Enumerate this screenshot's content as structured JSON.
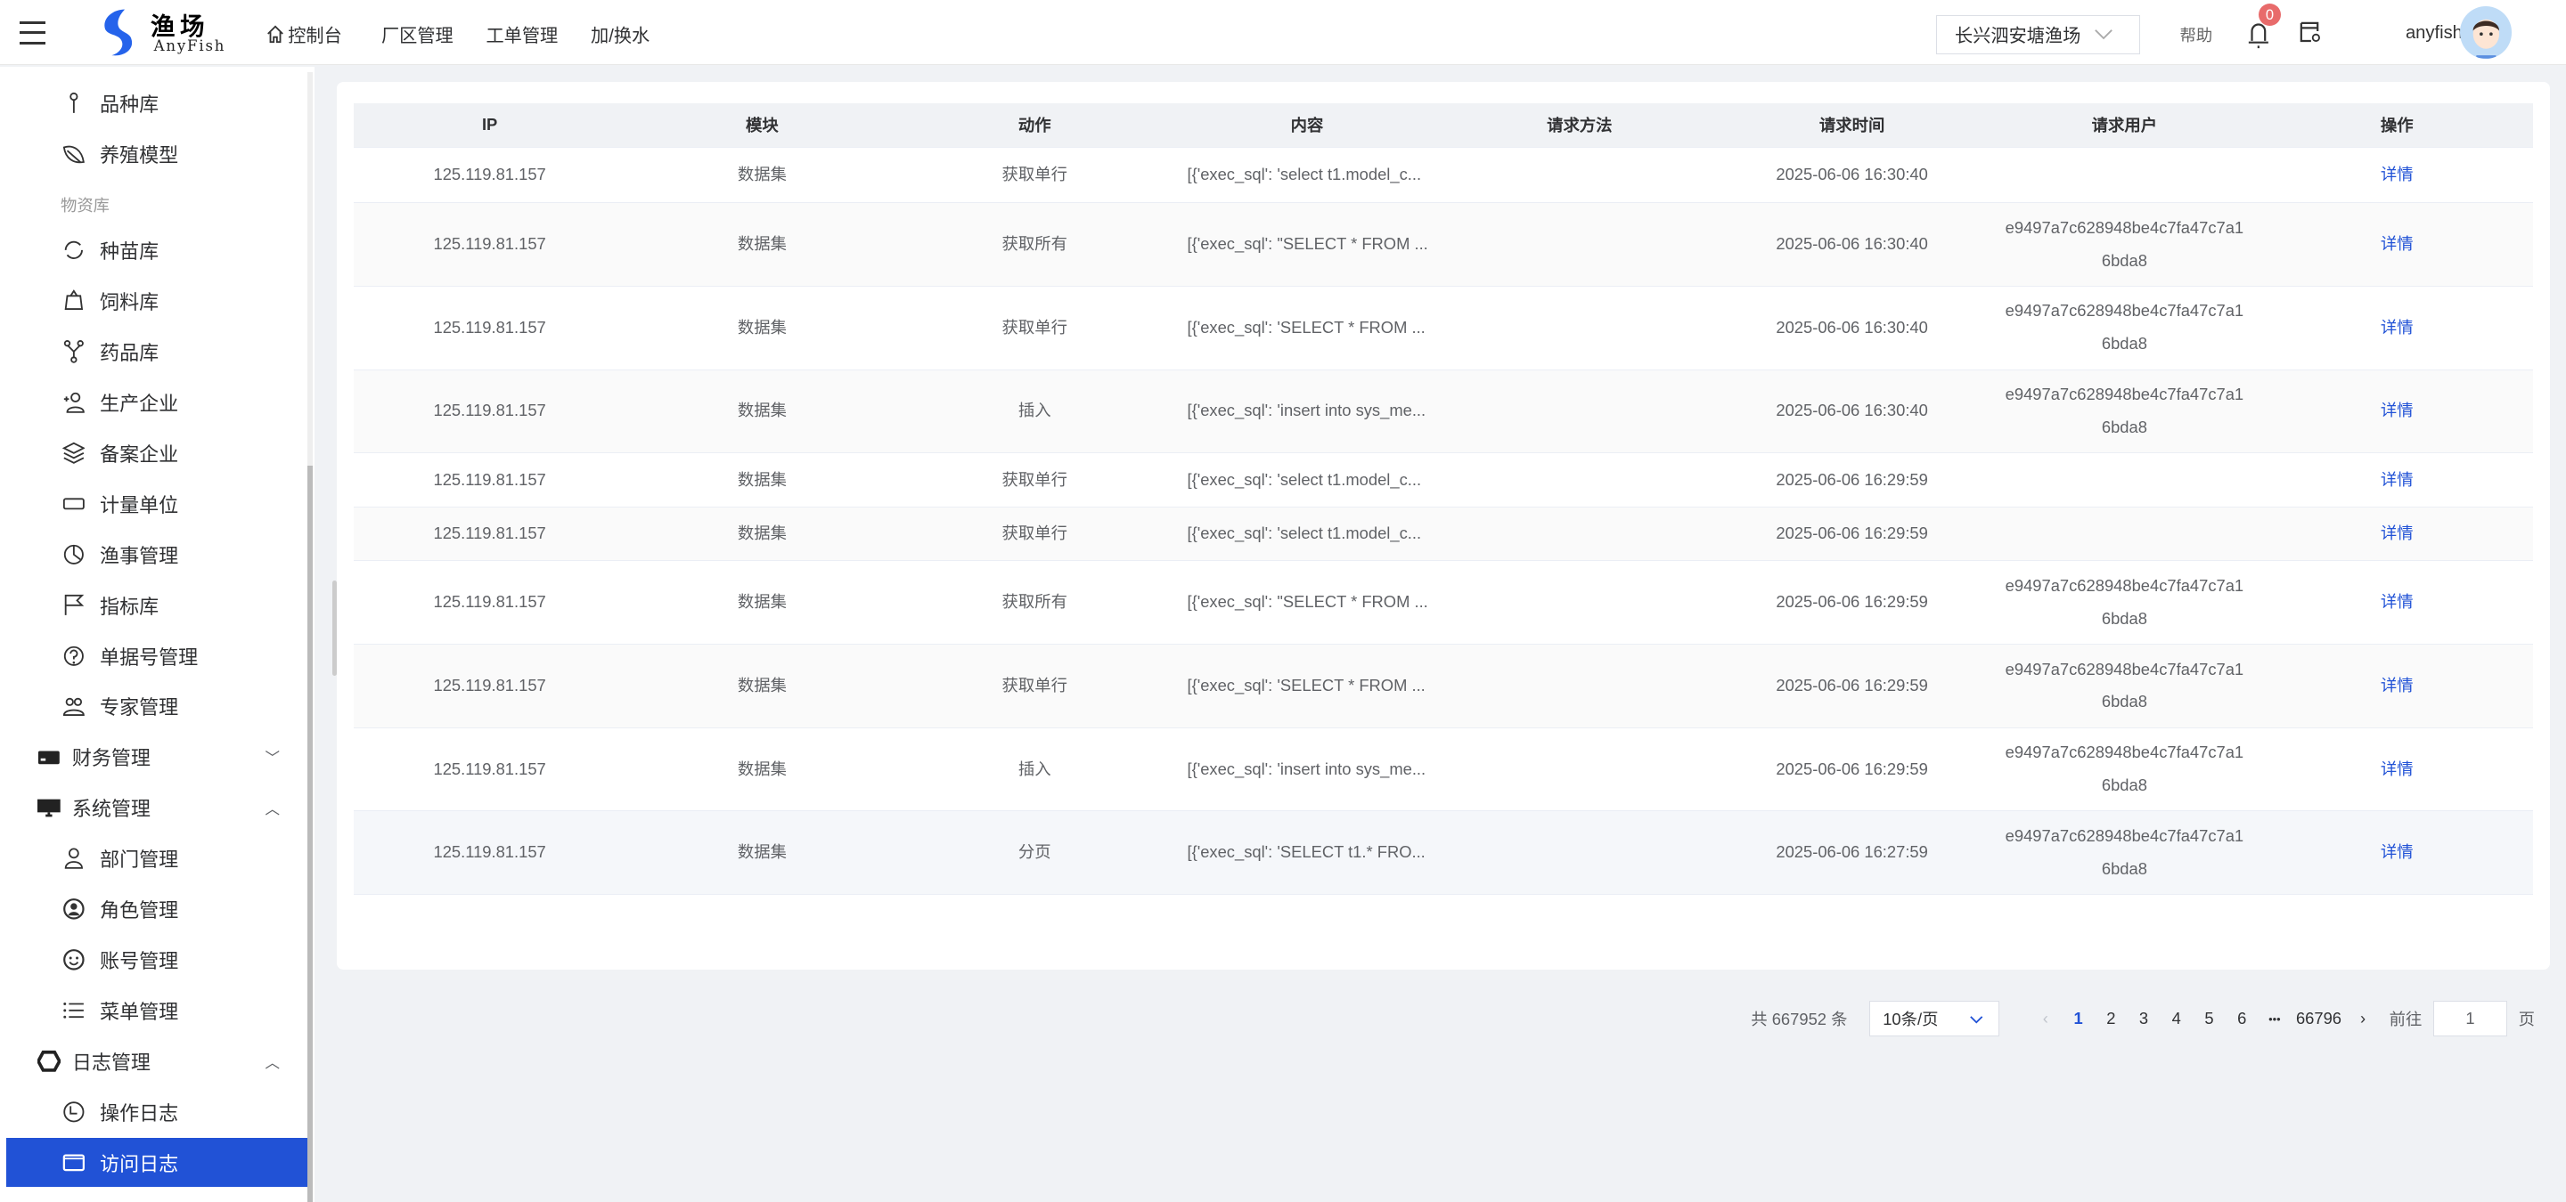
{
  "header": {
    "logo_text": "渔场",
    "logo_sub": "AnyFish",
    "nav": [
      {
        "label": "控制台",
        "icon": "home-icon"
      },
      {
        "label": "厂区管理"
      },
      {
        "label": "工单管理"
      },
      {
        "label": "加/换水"
      }
    ],
    "farm_select": "长兴泗安塘渔场",
    "help": "帮助",
    "notification_count": "0",
    "username": "anyfish"
  },
  "sidebar": {
    "items": [
      {
        "label": "品种库",
        "icon": "pin-icon"
      },
      {
        "label": "养殖模型",
        "icon": "leaf-icon"
      },
      {
        "section": "物资库"
      },
      {
        "label": "种苗库",
        "icon": "refresh-icon"
      },
      {
        "label": "饲料库",
        "icon": "bag-icon"
      },
      {
        "label": "药品库",
        "icon": "fork-icon"
      },
      {
        "label": "生产企业",
        "icon": "user-add-icon"
      },
      {
        "label": "备案企业",
        "icon": "layers-icon"
      },
      {
        "label": "计量单位",
        "icon": "rectangle-icon"
      },
      {
        "label": "渔事管理",
        "icon": "pie-icon"
      },
      {
        "label": "指标库",
        "icon": "flag-icon"
      },
      {
        "label": "单据号管理",
        "icon": "question-icon"
      },
      {
        "label": "专家管理",
        "icon": "users-icon"
      },
      {
        "label": "财务管理",
        "icon": "card-icon",
        "parent": true,
        "expanded": false
      },
      {
        "label": "系统管理",
        "icon": "monitor-icon",
        "parent": true,
        "expanded": true
      },
      {
        "label": "部门管理",
        "icon": "user-icon"
      },
      {
        "label": "角色管理",
        "icon": "user-circle-icon"
      },
      {
        "label": "账号管理",
        "icon": "smile-icon"
      },
      {
        "label": "菜单管理",
        "icon": "list-icon"
      },
      {
        "label": "日志管理",
        "icon": "hexagon-icon",
        "parent": true,
        "expanded": true
      },
      {
        "label": "操作日志",
        "icon": "clock-icon"
      },
      {
        "label": "访问日志",
        "icon": "window-icon",
        "active": true
      }
    ]
  },
  "table": {
    "columns": [
      "IP",
      "模块",
      "动作",
      "内容",
      "请求方法",
      "请求时间",
      "请求用户",
      "操作"
    ],
    "rows": [
      {
        "ip": "125.119.81.157",
        "module": "数据集",
        "action": "获取单行",
        "content": "[{'exec_sql': 'select t1.model_c...",
        "method": "",
        "time": "2025-06-06 16:30:40",
        "user": "",
        "op": "详情"
      },
      {
        "ip": "125.119.81.157",
        "module": "数据集",
        "action": "获取所有",
        "content": "[{'exec_sql': \"SELECT * FROM ...",
        "method": "",
        "time": "2025-06-06 16:30:40",
        "user": "e9497a7c628948be4c7fa47c7a16bda8",
        "op": "详情"
      },
      {
        "ip": "125.119.81.157",
        "module": "数据集",
        "action": "获取单行",
        "content": "[{'exec_sql': 'SELECT * FROM ...",
        "method": "",
        "time": "2025-06-06 16:30:40",
        "user": "e9497a7c628948be4c7fa47c7a16bda8",
        "op": "详情"
      },
      {
        "ip": "125.119.81.157",
        "module": "数据集",
        "action": "插入",
        "content": "[{'exec_sql': 'insert into sys_me...",
        "method": "",
        "time": "2025-06-06 16:30:40",
        "user": "e9497a7c628948be4c7fa47c7a16bda8",
        "op": "详情"
      },
      {
        "ip": "125.119.81.157",
        "module": "数据集",
        "action": "获取单行",
        "content": "[{'exec_sql': 'select t1.model_c...",
        "method": "",
        "time": "2025-06-06 16:29:59",
        "user": "",
        "op": "详情"
      },
      {
        "ip": "125.119.81.157",
        "module": "数据集",
        "action": "获取单行",
        "content": "[{'exec_sql': 'select t1.model_c...",
        "method": "",
        "time": "2025-06-06 16:29:59",
        "user": "",
        "op": "详情"
      },
      {
        "ip": "125.119.81.157",
        "module": "数据集",
        "action": "获取所有",
        "content": "[{'exec_sql': \"SELECT * FROM ...",
        "method": "",
        "time": "2025-06-06 16:29:59",
        "user": "e9497a7c628948be4c7fa47c7a16bda8",
        "op": "详情"
      },
      {
        "ip": "125.119.81.157",
        "module": "数据集",
        "action": "获取单行",
        "content": "[{'exec_sql': 'SELECT * FROM ...",
        "method": "",
        "time": "2025-06-06 16:29:59",
        "user": "e9497a7c628948be4c7fa47c7a16bda8",
        "op": "详情"
      },
      {
        "ip": "125.119.81.157",
        "module": "数据集",
        "action": "插入",
        "content": "[{'exec_sql': 'insert into sys_me...",
        "method": "",
        "time": "2025-06-06 16:29:59",
        "user": "e9497a7c628948be4c7fa47c7a16bda8",
        "op": "详情"
      },
      {
        "ip": "125.119.81.157",
        "module": "数据集",
        "action": "分页",
        "content": "[{'exec_sql': 'SELECT t1.* FRO...",
        "method": "",
        "time": "2025-06-06 16:27:59",
        "user": "e9497a7c628948be4c7fa47c7a16bda8",
        "op": "详情"
      }
    ]
  },
  "pagination": {
    "total": "共 667952 条",
    "page_size": "10条/页",
    "pages": [
      "1",
      "2",
      "3",
      "4",
      "5",
      "6"
    ],
    "ellipsis": "•••",
    "last_page": "66796",
    "current": "1",
    "goto_label": "前往",
    "goto_value": "1",
    "goto_suffix": "页"
  },
  "colors": {
    "accent": "#2152d6",
    "badge": "#e86b6b",
    "header_bg": "#f0f2f5"
  }
}
